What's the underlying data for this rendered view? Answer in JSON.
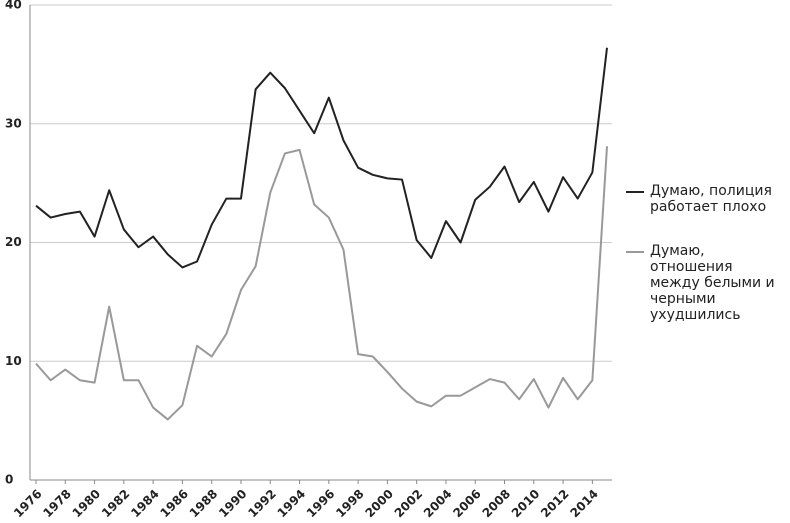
{
  "chart_data": {
    "type": "line",
    "x": [
      1976,
      1977,
      1978,
      1979,
      1980,
      1981,
      1982,
      1983,
      1984,
      1985,
      1986,
      1987,
      1988,
      1989,
      1990,
      1991,
      1992,
      1993,
      1994,
      1995,
      1996,
      1997,
      1998,
      1999,
      2000,
      2001,
      2002,
      2003,
      2004,
      2005,
      2006,
      2007,
      2008,
      2009,
      2010,
      2011,
      2012,
      2013,
      2014,
      2015
    ],
    "series": [
      {
        "name": "Думаю, полиция работает плохо",
        "color": "#222222",
        "values": [
          23.1,
          22.1,
          22.4,
          22.6,
          20.5,
          24.4,
          21.1,
          19.6,
          20.5,
          19.0,
          17.9,
          18.4,
          21.5,
          23.7,
          23.7,
          32.9,
          34.3,
          33.0,
          31.1,
          29.2,
          32.2,
          28.6,
          26.3,
          25.7,
          25.4,
          25.3,
          20.2,
          18.7,
          21.8,
          20.0,
          23.6,
          24.7,
          26.4,
          23.4,
          25.1,
          22.6,
          25.5,
          23.7,
          25.9,
          36.4
        ]
      },
      {
        "name": "Думаю, отношения между белыми и черными ухудшились",
        "color": "#999999",
        "values": [
          9.8,
          8.4,
          9.3,
          8.4,
          8.2,
          14.6,
          8.4,
          8.4,
          6.1,
          5.1,
          6.3,
          11.3,
          10.4,
          12.3,
          16.0,
          18.0,
          24.2,
          27.5,
          27.8,
          23.2,
          22.1,
          19.4,
          10.6,
          10.4,
          9.1,
          7.7,
          6.6,
          6.2,
          7.1,
          7.1,
          7.8,
          8.5,
          8.2,
          6.8,
          8.5,
          6.1,
          8.6,
          6.8,
          8.4,
          28.1
        ]
      }
    ],
    "xlim": [
      1976,
      2015
    ],
    "xticks": [
      1976,
      1978,
      1980,
      1982,
      1984,
      1986,
      1988,
      1990,
      1992,
      1994,
      1996,
      1998,
      2000,
      2002,
      2004,
      2006,
      2008,
      2010,
      2012,
      2014
    ],
    "ylim": [
      0,
      40
    ],
    "yticks": [
      0,
      10,
      20,
      30,
      40
    ],
    "grid": true,
    "legend": "right"
  }
}
